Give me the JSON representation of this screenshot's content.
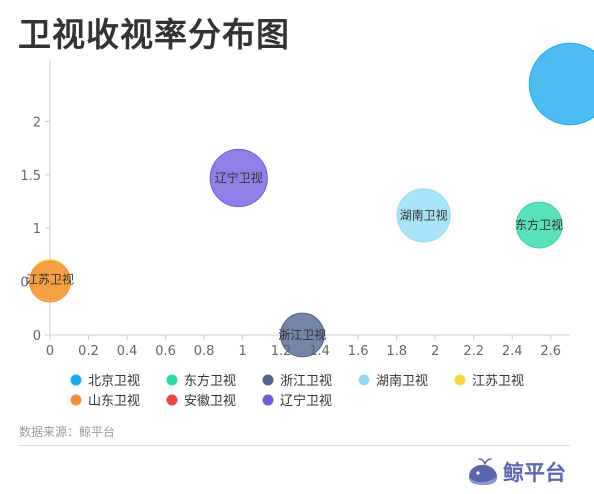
{
  "title": "卫视收视率分布图",
  "source": "数据来源：鲸平台",
  "logo_text": "鲸平台",
  "colors": {
    "axis": "#cccccc",
    "tick_text": "#666666",
    "label_text": "#333333",
    "logo": "#5a67b0"
  },
  "chart_data": {
    "type": "scatter",
    "title": "卫视收视率分布图",
    "xlim": [
      0,
      2.7
    ],
    "ylim": [
      0,
      2.5
    ],
    "x_ticks": [
      "0",
      "0.2",
      "0.4",
      "0.6",
      "0.8",
      "1",
      "1.2",
      "1.4",
      "1.6",
      "1.8",
      "2",
      "2.2",
      "2.4",
      "2.6"
    ],
    "y_ticks": [
      "0",
      "0.5",
      "1",
      "1.5",
      "2"
    ],
    "grid": false,
    "legend_position": "bottom-left",
    "series": [
      {
        "name": "北京卫视",
        "color": "#1aabf0",
        "x": 2.7,
        "y": 2.35,
        "size": 2.35,
        "show_label": false
      },
      {
        "name": "东方卫视",
        "color": "#29d9a8",
        "x": 2.54,
        "y": 1.03,
        "size": 1.03,
        "show_label": true
      },
      {
        "name": "浙江卫视",
        "color": "#4f6490",
        "x": 1.31,
        "y": 0.0,
        "size": 0.95,
        "show_label": true
      },
      {
        "name": "湖南卫视",
        "color": "#91dbf7",
        "x": 1.94,
        "y": 1.12,
        "size": 1.3,
        "show_label": true
      },
      {
        "name": "江苏卫视",
        "color": "#f8d63e",
        "x": 0.0,
        "y": 0.52,
        "size": 0.8,
        "show_label": true
      },
      {
        "name": "山东卫视",
        "color": "#f68e36",
        "x": 0.0,
        "y": 0.5,
        "size": 0.85,
        "show_label": false
      },
      {
        "name": "安徽卫视",
        "color": "#ef4646",
        "x": 0.0,
        "y": 0.5,
        "size": 0.0,
        "show_label": false
      },
      {
        "name": "辽宁卫视",
        "color": "#6e5ce0",
        "x": 0.98,
        "y": 1.47,
        "size": 1.45,
        "show_label": true
      }
    ]
  }
}
